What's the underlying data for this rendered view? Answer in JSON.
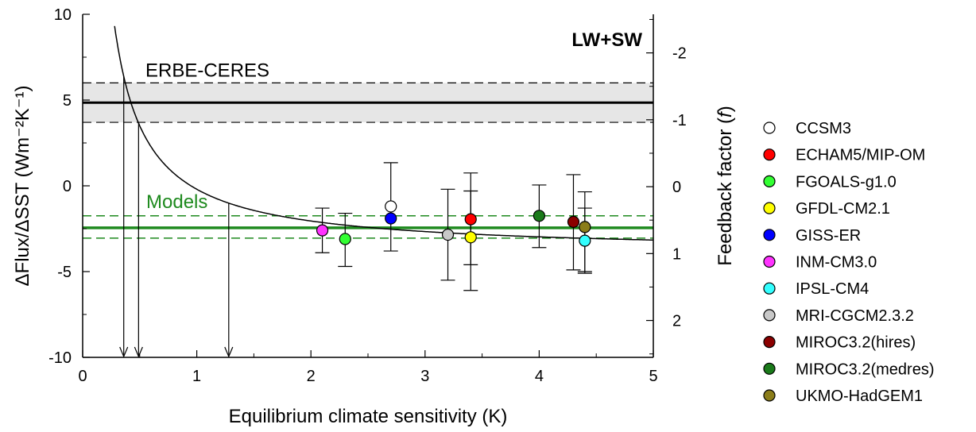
{
  "chart_data": {
    "type": "scatter",
    "xlabel": "Equilibrium climate sensitivity (K)",
    "ylabel_left": "ΔFlux/ΔSST (Wm⁻²K⁻¹)",
    "ylabel_right_text": "Feedback factor (",
    "ylabel_right_symbol": "f",
    "ylabel_right_end": ")",
    "panel_label": "LW+SW",
    "xlim": [
      0,
      5
    ],
    "ylim": [
      -10,
      10
    ],
    "x_ticks": [
      "0",
      "1",
      "2",
      "3",
      "4",
      "5"
    ],
    "x_tick_values": [
      0,
      1,
      2,
      3,
      4,
      5
    ],
    "y_ticks": [
      "-10",
      "-5",
      "0",
      "5",
      "10"
    ],
    "y_tick_values": [
      -10,
      -5,
      0,
      5,
      10
    ],
    "right_ticks": [
      "-2",
      "-1",
      "0",
      "1",
      "2"
    ],
    "right_tick_values": [
      -2,
      -1,
      0,
      1,
      2
    ],
    "erbe": {
      "label": "ERBE-CERES",
      "mean": 4.85,
      "lower": 3.7,
      "upper": 6.0,
      "fill": "#e6e6e6",
      "color": "#000000"
    },
    "models_band": {
      "label": "Models",
      "mean": -2.45,
      "lower": -3.05,
      "upper": -1.75,
      "color": "#1e8a1e"
    },
    "arrows_at_x": [
      0.36,
      0.49,
      1.28
    ],
    "series": [
      {
        "name": "CCSM3",
        "x": 2.7,
        "y": -1.2,
        "err_lo": null,
        "err_hi": null,
        "color": "#ffffff"
      },
      {
        "name": "ECHAM5/MIP-OM",
        "x": 3.4,
        "y": -1.95,
        "err_lo": -4.6,
        "err_hi": 0.75,
        "color": "#ff0000"
      },
      {
        "name": "FGOALS-g1.0",
        "x": 2.3,
        "y": -3.1,
        "err_lo": -4.7,
        "err_hi": -1.6,
        "color": "#33ff33"
      },
      {
        "name": "GFDL-CM2.1",
        "x": 3.4,
        "y": -3.0,
        "err_lo": -6.1,
        "err_hi": -0.3,
        "color": "#ffff00"
      },
      {
        "name": "GISS-ER",
        "x": 2.7,
        "y": -1.9,
        "err_lo": -3.8,
        "err_hi": 1.35,
        "color": "#0000ff"
      },
      {
        "name": "INM-CM3.0",
        "x": 2.1,
        "y": -2.6,
        "err_lo": -3.9,
        "err_hi": -1.3,
        "color": "#ff33ff"
      },
      {
        "name": "IPSL-CM4",
        "x": 4.4,
        "y": -3.2,
        "err_lo": -5.1,
        "err_hi": -1.3,
        "color": "#33ffff"
      },
      {
        "name": "MRI-CGCM2.3.2",
        "x": 3.2,
        "y": -2.85,
        "err_lo": -5.5,
        "err_hi": -0.2,
        "color": "#c8c8c8"
      },
      {
        "name": "MIROC3.2(hires)",
        "x": 4.3,
        "y": -2.1,
        "err_lo": -4.9,
        "err_hi": 0.65,
        "color": "#8b0000"
      },
      {
        "name": "MIROC3.2(medres)",
        "x": 4.0,
        "y": -1.75,
        "err_lo": -3.6,
        "err_hi": 0.05,
        "color": "#1a7a1a"
      },
      {
        "name": "UKMO-HadGEM1",
        "x": 4.4,
        "y": -2.4,
        "err_lo": -5.0,
        "err_hi": -0.35,
        "color": "#8b7d1a"
      }
    ]
  }
}
